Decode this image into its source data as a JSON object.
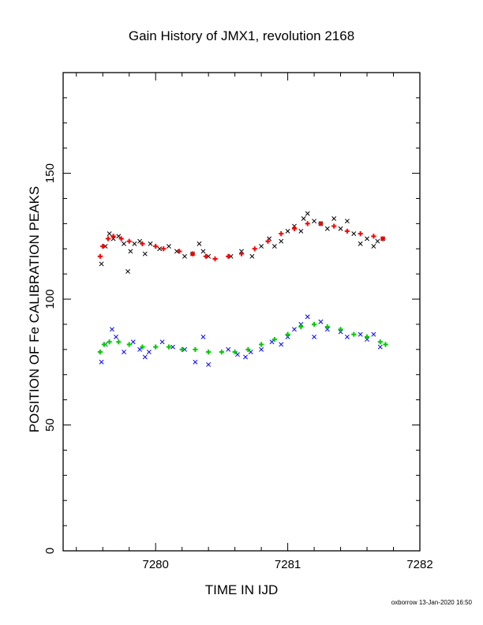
{
  "chart_data": {
    "type": "scatter",
    "title": "Gain History of JMX1, revolution 2168",
    "xlabel": "TIME IN IJD",
    "ylabel": "POSITION OF Fe CALIBRATION PEAKS",
    "xlim": [
      7279.3,
      7282.0
    ],
    "ylim": [
      0,
      190
    ],
    "x_ticks": [
      "7280",
      "7281",
      "7282"
    ],
    "y_ticks": [
      "0",
      "50",
      "100",
      "150"
    ],
    "grid": false,
    "legend": "none",
    "series": [
      {
        "color": "#000000",
        "marker": "x",
        "points": [
          [
            7279.59,
            114
          ],
          [
            7279.62,
            121
          ],
          [
            7279.65,
            126
          ],
          [
            7279.68,
            124
          ],
          [
            7279.72,
            125
          ],
          [
            7279.76,
            122
          ],
          [
            7279.79,
            111
          ],
          [
            7279.81,
            119
          ],
          [
            7279.84,
            122
          ],
          [
            7279.88,
            123
          ],
          [
            7279.92,
            118
          ],
          [
            7279.96,
            122
          ],
          [
            7280.03,
            120
          ],
          [
            7280.1,
            121
          ],
          [
            7280.16,
            119
          ],
          [
            7280.22,
            117
          ],
          [
            7280.28,
            118
          ],
          [
            7280.33,
            122
          ],
          [
            7280.36,
            119
          ],
          [
            7280.4,
            117
          ],
          [
            7280.57,
            117
          ],
          [
            7280.65,
            119
          ],
          [
            7280.73,
            117
          ],
          [
            7280.8,
            121
          ],
          [
            7280.86,
            124
          ],
          [
            7280.9,
            121
          ],
          [
            7280.95,
            123
          ],
          [
            7281.0,
            127
          ],
          [
            7281.05,
            129
          ],
          [
            7281.1,
            127
          ],
          [
            7281.12,
            132
          ],
          [
            7281.15,
            134
          ],
          [
            7281.2,
            131
          ],
          [
            7281.25,
            130
          ],
          [
            7281.3,
            128
          ],
          [
            7281.35,
            132
          ],
          [
            7281.4,
            128
          ],
          [
            7281.45,
            131
          ],
          [
            7281.5,
            126
          ],
          [
            7281.55,
            122
          ],
          [
            7281.6,
            124
          ],
          [
            7281.65,
            121
          ],
          [
            7281.68,
            123
          ],
          [
            7281.72,
            124
          ]
        ]
      },
      {
        "color": "#ff0000",
        "marker": "+",
        "points": [
          [
            7279.58,
            117
          ],
          [
            7279.6,
            121
          ],
          [
            7279.64,
            124
          ],
          [
            7279.68,
            125
          ],
          [
            7279.74,
            124
          ],
          [
            7279.8,
            123
          ],
          [
            7279.9,
            122
          ],
          [
            7280.0,
            121
          ],
          [
            7280.06,
            120
          ],
          [
            7280.18,
            119
          ],
          [
            7280.28,
            118
          ],
          [
            7280.38,
            117
          ],
          [
            7280.45,
            116
          ],
          [
            7280.55,
            117
          ],
          [
            7280.65,
            118
          ],
          [
            7280.75,
            120
          ],
          [
            7280.85,
            123
          ],
          [
            7280.95,
            126
          ],
          [
            7281.05,
            128
          ],
          [
            7281.15,
            130
          ],
          [
            7281.25,
            130
          ],
          [
            7281.35,
            129
          ],
          [
            7281.45,
            127
          ],
          [
            7281.55,
            126
          ],
          [
            7281.65,
            125
          ],
          [
            7281.72,
            124
          ]
        ]
      },
      {
        "color": "#0000ff",
        "marker": "x",
        "points": [
          [
            7279.59,
            75
          ],
          [
            7279.62,
            82
          ],
          [
            7279.67,
            88
          ],
          [
            7279.7,
            85
          ],
          [
            7279.76,
            79
          ],
          [
            7279.83,
            83
          ],
          [
            7279.88,
            80
          ],
          [
            7279.92,
            77
          ],
          [
            7279.95,
            79
          ],
          [
            7280.05,
            83
          ],
          [
            7280.13,
            81
          ],
          [
            7280.22,
            80
          ],
          [
            7280.3,
            75
          ],
          [
            7280.36,
            85
          ],
          [
            7280.4,
            74
          ],
          [
            7280.55,
            80
          ],
          [
            7280.62,
            78
          ],
          [
            7280.68,
            77
          ],
          [
            7280.72,
            79
          ],
          [
            7280.8,
            80
          ],
          [
            7280.88,
            83
          ],
          [
            7280.95,
            82
          ],
          [
            7281.0,
            85
          ],
          [
            7281.05,
            88
          ],
          [
            7281.1,
            90
          ],
          [
            7281.15,
            93
          ],
          [
            7281.2,
            85
          ],
          [
            7281.25,
            91
          ],
          [
            7281.3,
            88
          ],
          [
            7281.4,
            87
          ],
          [
            7281.45,
            85
          ],
          [
            7281.55,
            86
          ],
          [
            7281.6,
            84
          ],
          [
            7281.65,
            86
          ],
          [
            7281.7,
            81
          ]
        ]
      },
      {
        "color": "#00cc00",
        "marker": "+",
        "points": [
          [
            7279.58,
            79
          ],
          [
            7279.61,
            82
          ],
          [
            7279.65,
            83
          ],
          [
            7279.72,
            83
          ],
          [
            7279.8,
            82
          ],
          [
            7279.9,
            81
          ],
          [
            7280.0,
            81
          ],
          [
            7280.1,
            81
          ],
          [
            7280.2,
            80
          ],
          [
            7280.3,
            80
          ],
          [
            7280.4,
            79
          ],
          [
            7280.5,
            79
          ],
          [
            7280.6,
            79
          ],
          [
            7280.7,
            80
          ],
          [
            7280.8,
            82
          ],
          [
            7280.9,
            84
          ],
          [
            7281.0,
            86
          ],
          [
            7281.1,
            89
          ],
          [
            7281.2,
            90
          ],
          [
            7281.3,
            89
          ],
          [
            7281.4,
            88
          ],
          [
            7281.5,
            86
          ],
          [
            7281.6,
            85
          ],
          [
            7281.7,
            83
          ],
          [
            7281.74,
            82
          ]
        ]
      }
    ]
  },
  "footer": "oxborrow 13-Jan-2020 16:50"
}
